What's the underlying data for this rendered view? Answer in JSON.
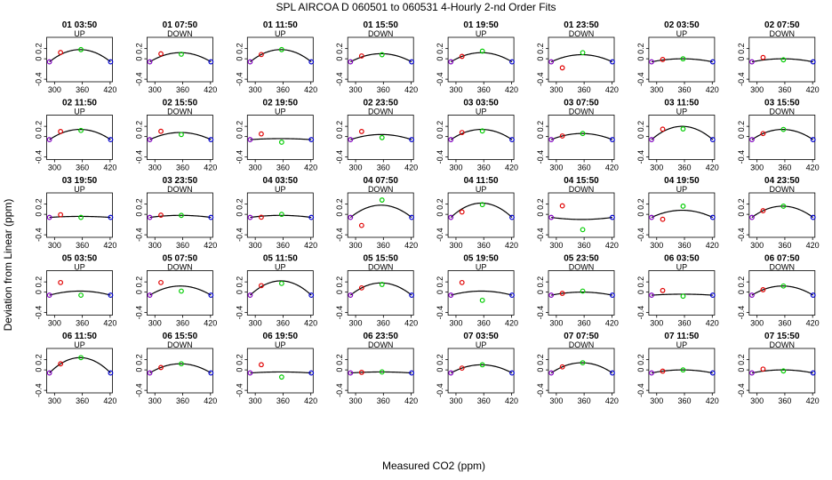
{
  "chart_data": {
    "type": "line",
    "title": "SPL   AIRCOA D   060501 to 060531   4-Hourly 2-nd Order Fits",
    "xlabel": "Measured CO2 (ppm)",
    "ylabel": "Deviation from Linear (ppm)",
    "xlim": [
      283,
      425
    ],
    "ylim": [
      -0.45,
      0.42
    ],
    "xticks": [
      "300",
      "360",
      "420"
    ],
    "yticks": [
      "-0.4",
      "0",
      "0.2"
    ],
    "tick_values": {
      "x": [
        300,
        360,
        420
      ],
      "y": [
        -0.4,
        0,
        0.2
      ]
    },
    "standards_x": [
      289,
      313,
      357,
      421
    ],
    "point_colors": [
      "#8000c0",
      "#e00000",
      "#00cc00",
      "#0000d0"
    ],
    "line_color": "#000000",
    "panels": [
      {
        "label": "01 03:50",
        "dir": "UP",
        "curv": 0.24,
        "dev": [
          0,
          0.04,
          0,
          0
        ]
      },
      {
        "label": "01 07:50",
        "dir": "DOWN",
        "curv": 0.18,
        "dev": [
          0,
          0.05,
          -0.03,
          0
        ]
      },
      {
        "label": "01 11:50",
        "dir": "UP",
        "curv": 0.24,
        "dev": [
          0,
          0,
          0,
          0
        ]
      },
      {
        "label": "01 15:50",
        "dir": "DOWN",
        "curv": 0.16,
        "dev": [
          0,
          0.02,
          -0.02,
          0
        ]
      },
      {
        "label": "01 19:50",
        "dir": "UP",
        "curv": 0.18,
        "dev": [
          0,
          0,
          0.03,
          0
        ]
      },
      {
        "label": "01 23:50",
        "dir": "DOWN",
        "curv": 0.14,
        "dev": [
          0,
          -0.2,
          0.04,
          0
        ]
      },
      {
        "label": "02 03:50",
        "dir": "UP",
        "curv": 0.06,
        "dev": [
          0,
          0.01,
          0,
          0
        ]
      },
      {
        "label": "02 07:50",
        "dir": "DOWN",
        "curv": 0.06,
        "dev": [
          0,
          0.05,
          -0.02,
          0
        ]
      },
      {
        "label": "02 11:50",
        "dir": "UP",
        "curv": 0.2,
        "dev": [
          0,
          0.04,
          -0.02,
          0
        ]
      },
      {
        "label": "02 15:50",
        "dir": "DOWN",
        "curv": 0.14,
        "dev": [
          0,
          0.08,
          -0.04,
          0
        ]
      },
      {
        "label": "02 19:50",
        "dir": "UP",
        "curv": 0.02,
        "dev": [
          0,
          0.1,
          -0.07,
          0
        ]
      },
      {
        "label": "02 23:50",
        "dir": "DOWN",
        "curv": 0.1,
        "dev": [
          0,
          0.1,
          -0.06,
          0
        ]
      },
      {
        "label": "03 03:50",
        "dir": "UP",
        "curv": 0.2,
        "dev": [
          0,
          0.02,
          -0.03,
          0
        ]
      },
      {
        "label": "03 07:50",
        "dir": "DOWN",
        "curv": 0.12,
        "dev": [
          0,
          0,
          0,
          0
        ]
      },
      {
        "label": "03 11:50",
        "dir": "UP",
        "curv": 0.26,
        "dev": [
          0,
          0.05,
          -0.05,
          0
        ]
      },
      {
        "label": "03 15:50",
        "dir": "DOWN",
        "curv": 0.2,
        "dev": [
          0,
          0,
          0,
          0
        ]
      },
      {
        "label": "03 19:50",
        "dir": "UP",
        "curv": 0.02,
        "dev": [
          0,
          0.04,
          -0.02,
          0
        ]
      },
      {
        "label": "03 23:50",
        "dir": "DOWN",
        "curv": 0.04,
        "dev": [
          0,
          0.02,
          0,
          0
        ]
      },
      {
        "label": "04 03:50",
        "dir": "UP",
        "curv": 0.04,
        "dev": [
          0,
          -0.02,
          0.02,
          0
        ]
      },
      {
        "label": "04 07:50",
        "dir": "DOWN",
        "curv": 0.24,
        "dev": [
          0,
          -0.3,
          0.1,
          0
        ]
      },
      {
        "label": "04 11:50",
        "dir": "UP",
        "curv": 0.28,
        "dev": [
          0,
          -0.06,
          -0.03,
          0
        ]
      },
      {
        "label": "04 15:50",
        "dir": "DOWN",
        "curv": -0.04,
        "dev": [
          0,
          0.25,
          -0.2,
          0
        ]
      },
      {
        "label": "04 19:50",
        "dir": "UP",
        "curv": 0.14,
        "dev": [
          0,
          -0.12,
          0.08,
          0
        ]
      },
      {
        "label": "04 23:50",
        "dir": "DOWN",
        "curv": 0.22,
        "dev": [
          0,
          0,
          0,
          0
        ]
      },
      {
        "label": "05 03:50",
        "dir": "UP",
        "curv": 0.08,
        "dev": [
          0,
          0.2,
          -0.08,
          0
        ]
      },
      {
        "label": "05 07:50",
        "dir": "DOWN",
        "curv": 0.18,
        "dev": [
          0,
          0.14,
          -0.1,
          0
        ]
      },
      {
        "label": "05 11:50",
        "dir": "UP",
        "curv": 0.28,
        "dev": [
          0,
          0.02,
          -0.05,
          0
        ]
      },
      {
        "label": "05 15:50",
        "dir": "DOWN",
        "curv": 0.24,
        "dev": [
          0,
          0,
          -0.03,
          0
        ]
      },
      {
        "label": "05 19:50",
        "dir": "UP",
        "curv": 0.08,
        "dev": [
          0,
          0.2,
          -0.18,
          0
        ]
      },
      {
        "label": "05 23:50",
        "dir": "DOWN",
        "curv": 0.06,
        "dev": [
          0,
          0,
          0.02,
          0
        ]
      },
      {
        "label": "06 03:50",
        "dir": "UP",
        "curv": 0.02,
        "dev": [
          0,
          0.08,
          -0.04,
          0
        ]
      },
      {
        "label": "06 07:50",
        "dir": "DOWN",
        "curv": 0.18,
        "dev": [
          0,
          0,
          0,
          0
        ]
      },
      {
        "label": "06 11:50",
        "dir": "UP",
        "curv": 0.3,
        "dev": [
          0,
          0,
          0,
          0
        ]
      },
      {
        "label": "06 15:50",
        "dir": "DOWN",
        "curv": 0.18,
        "dev": [
          0,
          0,
          0,
          0
        ]
      },
      {
        "label": "06 19:50",
        "dir": "UP",
        "curv": 0.02,
        "dev": [
          0,
          0.15,
          -0.1,
          0
        ]
      },
      {
        "label": "06 23:50",
        "dir": "DOWN",
        "curv": 0.02,
        "dev": [
          0,
          0,
          0,
          0
        ]
      },
      {
        "label": "07 03:50",
        "dir": "UP",
        "curv": 0.16,
        "dev": [
          0,
          0,
          0,
          0
        ]
      },
      {
        "label": "07 07:50",
        "dir": "DOWN",
        "curv": 0.2,
        "dev": [
          0,
          0,
          0,
          0
        ]
      },
      {
        "label": "07 11:50",
        "dir": "UP",
        "curv": 0.06,
        "dev": [
          0,
          0,
          0,
          0
        ]
      },
      {
        "label": "07 15:50",
        "dir": "DOWN",
        "curv": 0.06,
        "dev": [
          0,
          0.04,
          -0.02,
          0
        ]
      }
    ]
  }
}
